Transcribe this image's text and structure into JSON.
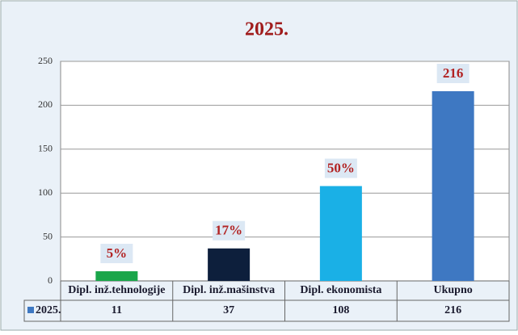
{
  "chart_data": {
    "type": "bar",
    "title": "2025.",
    "categories": [
      "Dipl. inž.tehnologije",
      "Dipl. inž.mašinstva",
      "Dipl. ekonomista",
      "Ukupno"
    ],
    "series": [
      {
        "name": "2025.",
        "color": "#3e78c2",
        "colors": [
          "#1aa64a",
          "#0d1f3c",
          "#1ab0e6",
          "#3e78c2"
        ],
        "values": [
          11,
          37,
          108,
          216
        ]
      }
    ],
    "annotations": [
      "5%",
      "17%",
      "50%",
      "216"
    ],
    "ylim": [
      0,
      250
    ],
    "yticks": [
      0,
      50,
      100,
      150,
      200,
      250
    ],
    "grid": true,
    "data_table": true
  }
}
